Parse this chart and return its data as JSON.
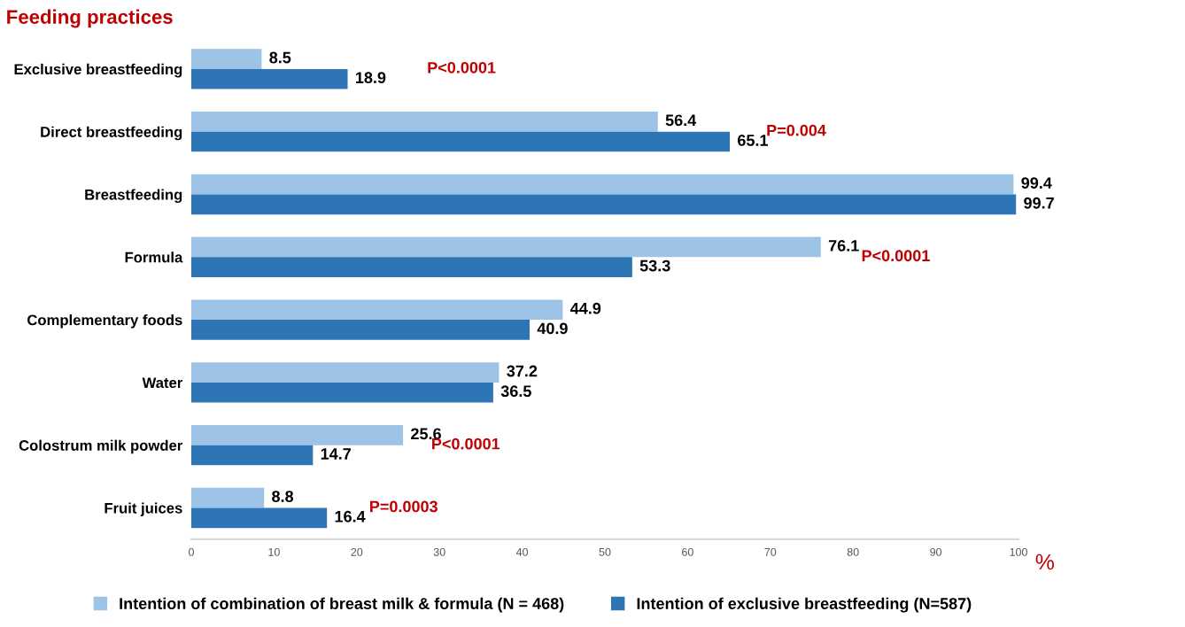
{
  "chart_data": {
    "type": "bar",
    "orientation": "horizontal",
    "title": "Feeding practices",
    "xlabel": "%",
    "categories": [
      "Exclusive breastfeeding",
      "Direct breastfeeding",
      "Breastfeeding",
      "Formula",
      "Complementary foods",
      "Water",
      "Colostrum milk powder",
      "Fruit juices"
    ],
    "series": [
      {
        "name": "Intention of combination of breast milk & formula (N = 468)",
        "color": "#9dc3e6",
        "values": [
          8.5,
          56.4,
          99.4,
          76.1,
          44.9,
          37.2,
          25.6,
          8.8
        ]
      },
      {
        "name": "Intention of exclusive breastfeeding (N=587)",
        "color": "#2e75b6",
        "values": [
          18.9,
          65.1,
          99.7,
          53.3,
          40.9,
          36.5,
          14.7,
          16.4
        ]
      }
    ],
    "xlim": [
      0,
      100
    ],
    "xticks": [
      0,
      10,
      20,
      30,
      40,
      50,
      60,
      70,
      80,
      90,
      100
    ],
    "data_labels": true,
    "grid": false,
    "legend": "bottom",
    "annotations": [
      "P<0.0001",
      "P=0.004",
      "P<0.0001",
      "P<0.0001",
      "P=0.0003"
    ]
  }
}
